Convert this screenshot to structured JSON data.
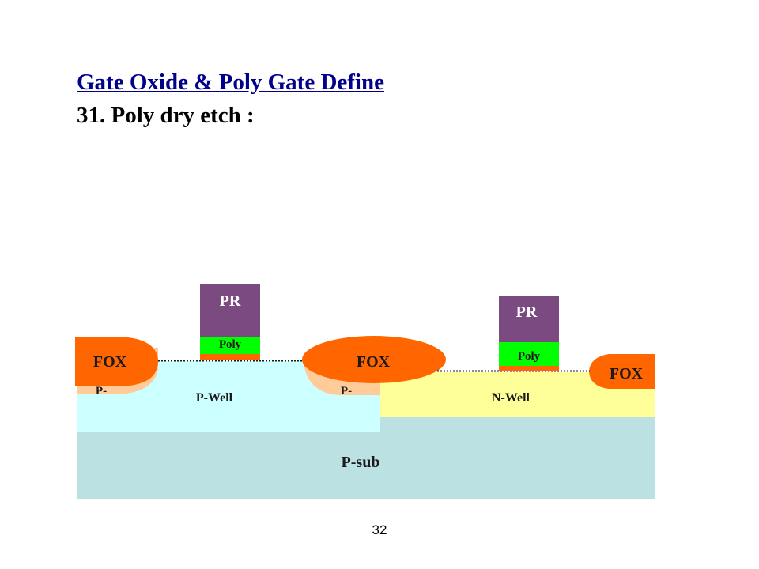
{
  "title": "Gate Oxide & Poly Gate Define",
  "subtitle": "31. Poly dry etch :",
  "page_number": "32",
  "diagram": {
    "substrate_label": "P-sub",
    "p_well_label": "P-Well",
    "n_well_label": "N-Well",
    "fox_labels": [
      "FOX",
      "FOX",
      "FOX"
    ],
    "channel_stop_labels": [
      "P-",
      "P-"
    ],
    "photoresist_labels": [
      "PR",
      "PR"
    ],
    "poly_labels": [
      "Poly",
      "Poly"
    ],
    "colors": {
      "substrate": "#bce1e3",
      "p_well": "#ccffff",
      "n_well": "#ffff99",
      "fox": "#ff6600",
      "p_minus": "#ffcc99",
      "photoresist": "#7a4a80",
      "poly": "#00ff00",
      "gate_oxide": "#ff6600",
      "title": "#00008b"
    }
  }
}
